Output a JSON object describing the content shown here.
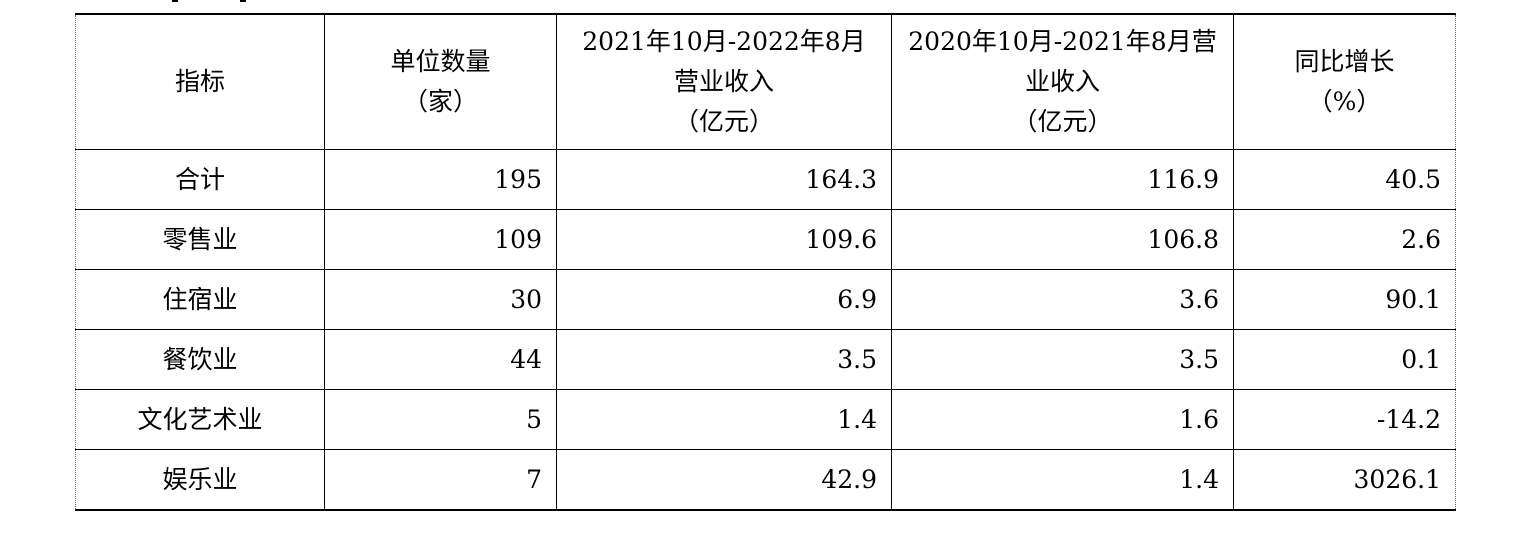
{
  "table": {
    "headers": [
      {
        "lines": [
          "指标"
        ]
      },
      {
        "lines": [
          "单位数量",
          "（家）"
        ]
      },
      {
        "lines": [
          "2021年10月-2022年8月",
          "营业收入",
          "（亿元）"
        ]
      },
      {
        "lines": [
          "2020年10月-2021年8月营",
          "业收入",
          "（亿元）"
        ]
      },
      {
        "lines": [
          "同比增长",
          "（%）"
        ]
      }
    ],
    "rows": [
      [
        "合计",
        "195",
        "164.3",
        "116.9",
        "40.5"
      ],
      [
        "零售业",
        "109",
        "109.6",
        "106.8",
        "2.6"
      ],
      [
        "住宿业",
        "30",
        "6.9",
        "3.6",
        "90.1"
      ],
      [
        "餐饮业",
        "44",
        "3.5",
        "3.5",
        "0.1"
      ],
      [
        "文化艺术业",
        "5",
        "1.4",
        "1.6",
        "-14.2"
      ],
      [
        "娱乐业",
        "7",
        "42.9",
        "1.4",
        "3026.1"
      ]
    ]
  }
}
